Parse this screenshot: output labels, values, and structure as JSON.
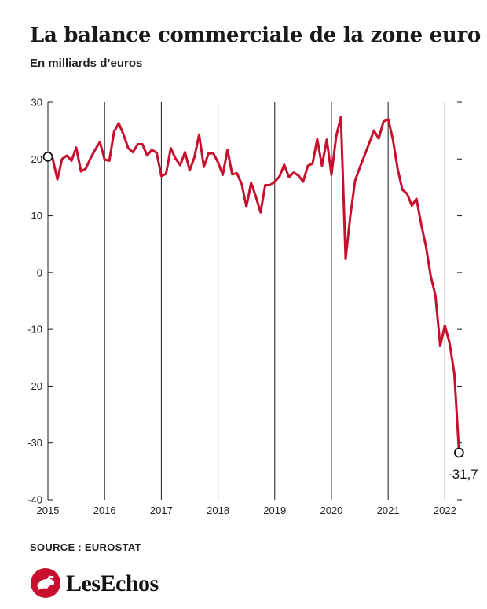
{
  "title": "La balance commerciale de la zone euro",
  "subtitle": "En milliards d’euros",
  "source": "SOURCE : EUROSTAT",
  "logo": {
    "text": "LesEchos",
    "icon": "rooster-logo-icon",
    "color": "#c8102e"
  },
  "colors": {
    "line": "#c8102e",
    "grid": "#1a1a1a"
  },
  "chart_data": {
    "type": "line",
    "title": "La balance commerciale de la zone euro",
    "ylabel": "En milliards d’euros",
    "xlabel": "",
    "ylim": [
      -40,
      30
    ],
    "yticks": [
      30,
      20,
      10,
      0,
      -10,
      -20,
      -30,
      -40
    ],
    "ytick_labels": [
      "30",
      "20",
      "10",
      "0",
      "-10",
      "-20",
      "-30",
      "-40"
    ],
    "xlim": [
      2015.0,
      2022.3
    ],
    "xticks": [
      2015,
      2016,
      2017,
      2018,
      2019,
      2020,
      2021,
      2022
    ],
    "xtick_labels": [
      "2015",
      "2016",
      "2017",
      "2018",
      "2019",
      "2020",
      "2021",
      "2022"
    ],
    "grid": "vertical lines at each year, horizontal ticks only",
    "series": [
      {
        "x": [
          2015.0,
          2015.083,
          2015.167,
          2015.25,
          2015.333,
          2015.417,
          2015.5,
          2015.583,
          2015.667,
          2015.75,
          2015.833,
          2015.917,
          2016.0,
          2016.083,
          2016.167,
          2016.25,
          2016.333,
          2016.417,
          2016.5,
          2016.583,
          2016.667,
          2016.75,
          2016.833,
          2016.917,
          2017.0,
          2017.083,
          2017.167,
          2017.25,
          2017.333,
          2017.417,
          2017.5,
          2017.583,
          2017.667,
          2017.75,
          2017.833,
          2017.917,
          2018.0,
          2018.083,
          2018.167,
          2018.25,
          2018.333,
          2018.417,
          2018.5,
          2018.583,
          2018.667,
          2018.75,
          2018.833,
          2018.917,
          2019.0,
          2019.083,
          2019.167,
          2019.25,
          2019.333,
          2019.417,
          2019.5,
          2019.583,
          2019.667,
          2019.75,
          2019.833,
          2019.917,
          2020.0,
          2020.083,
          2020.167,
          2020.25,
          2020.333,
          2020.417,
          2020.5,
          2020.583,
          2020.667,
          2020.75,
          2020.833,
          2020.917,
          2021.0,
          2021.083,
          2021.167,
          2021.25,
          2021.333,
          2021.417,
          2021.5,
          2021.583,
          2021.667,
          2021.75,
          2021.833,
          2021.917,
          2022.0,
          2022.083,
          2022.167,
          2022.25
        ],
        "values": [
          20.4,
          20.1,
          16.4,
          20.0,
          20.6,
          19.7,
          22.0,
          17.8,
          18.3,
          20.1,
          21.6,
          23.0,
          19.9,
          19.7,
          24.8,
          26.3,
          24.3,
          21.9,
          21.2,
          22.6,
          22.6,
          20.6,
          21.6,
          21.1,
          17.0,
          17.4,
          21.9,
          20.1,
          18.9,
          21.2,
          18.0,
          20.3,
          24.3,
          18.6,
          21.0,
          21.0,
          19.4,
          17.2,
          21.6,
          17.3,
          17.5,
          15.6,
          11.6,
          15.8,
          13.4,
          10.6,
          15.4,
          15.4,
          16.0,
          16.9,
          19.0,
          16.8,
          17.6,
          17.1,
          16.0,
          18.8,
          19.2,
          23.5,
          18.8,
          23.4,
          17.2,
          24.0,
          27.4,
          2.4,
          10.0,
          16.2,
          18.5,
          20.6,
          22.8,
          25.0,
          23.6,
          26.6,
          27.0,
          23.5,
          18.3,
          14.6,
          13.9,
          11.8,
          13.0,
          8.5,
          4.6,
          -0.6,
          -4.0,
          -12.9,
          -9.3,
          -12.4,
          -17.8,
          -31.7
        ],
        "start_marker": true,
        "end_marker": true,
        "end_label": "-31,7"
      }
    ]
  }
}
